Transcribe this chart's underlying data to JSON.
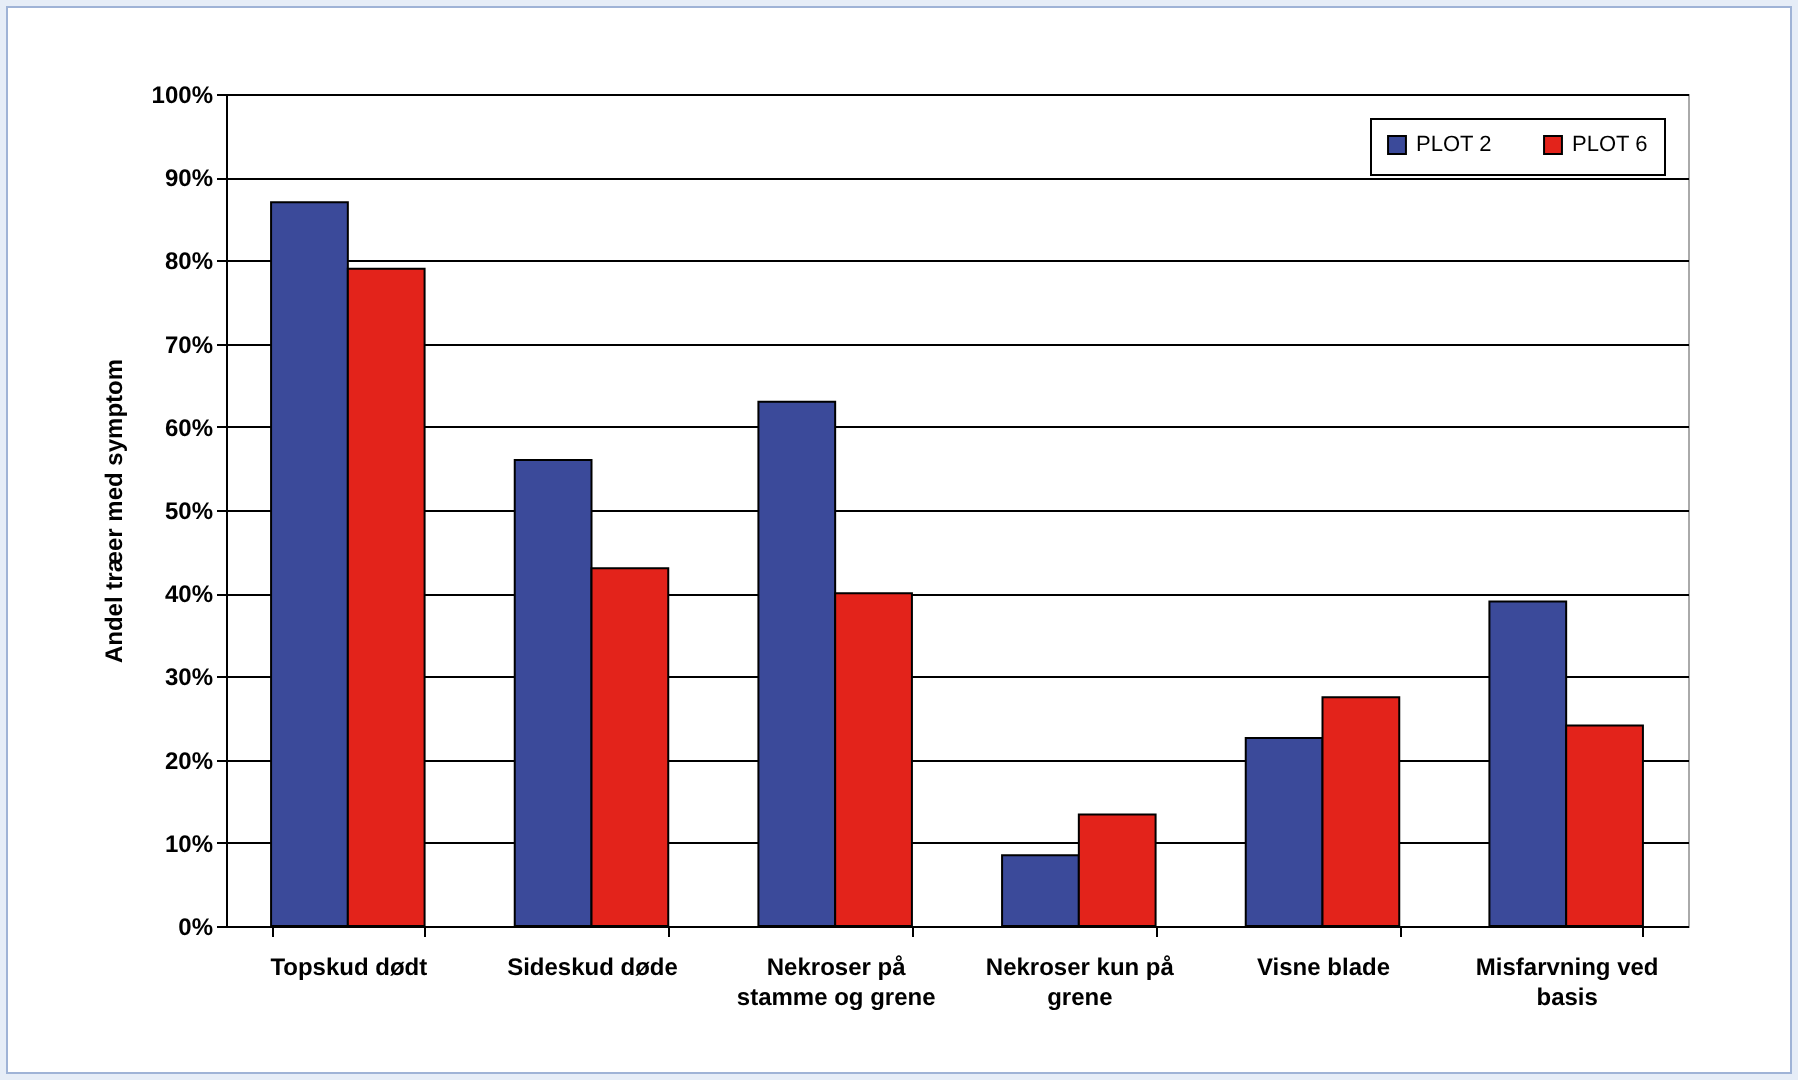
{
  "chart_data": {
    "type": "bar",
    "ylabel": "Andel træer med symptom",
    "categories": [
      "Topskud dødt",
      "Sideskud døde",
      "Nekroser på stamme og grene",
      "Nekroser kun på grene",
      "Visne blade",
      "Misfarvning ved basis"
    ],
    "series": [
      {
        "name": "PLOT 2",
        "color": "#3b4a9a",
        "values": [
          87,
          56,
          63,
          8.5,
          22.6,
          39
        ]
      },
      {
        "name": "PLOT 6",
        "color": "#e3231b",
        "values": [
          79,
          43,
          40,
          13.4,
          27.5,
          24.1
        ]
      }
    ],
    "ylim": [
      0,
      100
    ],
    "yticks": [
      {
        "value": 0,
        "label": "0%"
      },
      {
        "value": 10,
        "label": "10%"
      },
      {
        "value": 20,
        "label": "20%"
      },
      {
        "value": 30,
        "label": "30%"
      },
      {
        "value": 40,
        "label": "40%"
      },
      {
        "value": 50,
        "label": "50%"
      },
      {
        "value": 60,
        "label": "60%"
      },
      {
        "value": 70,
        "label": "70%"
      },
      {
        "value": 80,
        "label": "80%"
      },
      {
        "value": 90,
        "label": "90%"
      },
      {
        "value": 100,
        "label": "100%"
      }
    ],
    "grid": "y",
    "legend": "top right"
  }
}
